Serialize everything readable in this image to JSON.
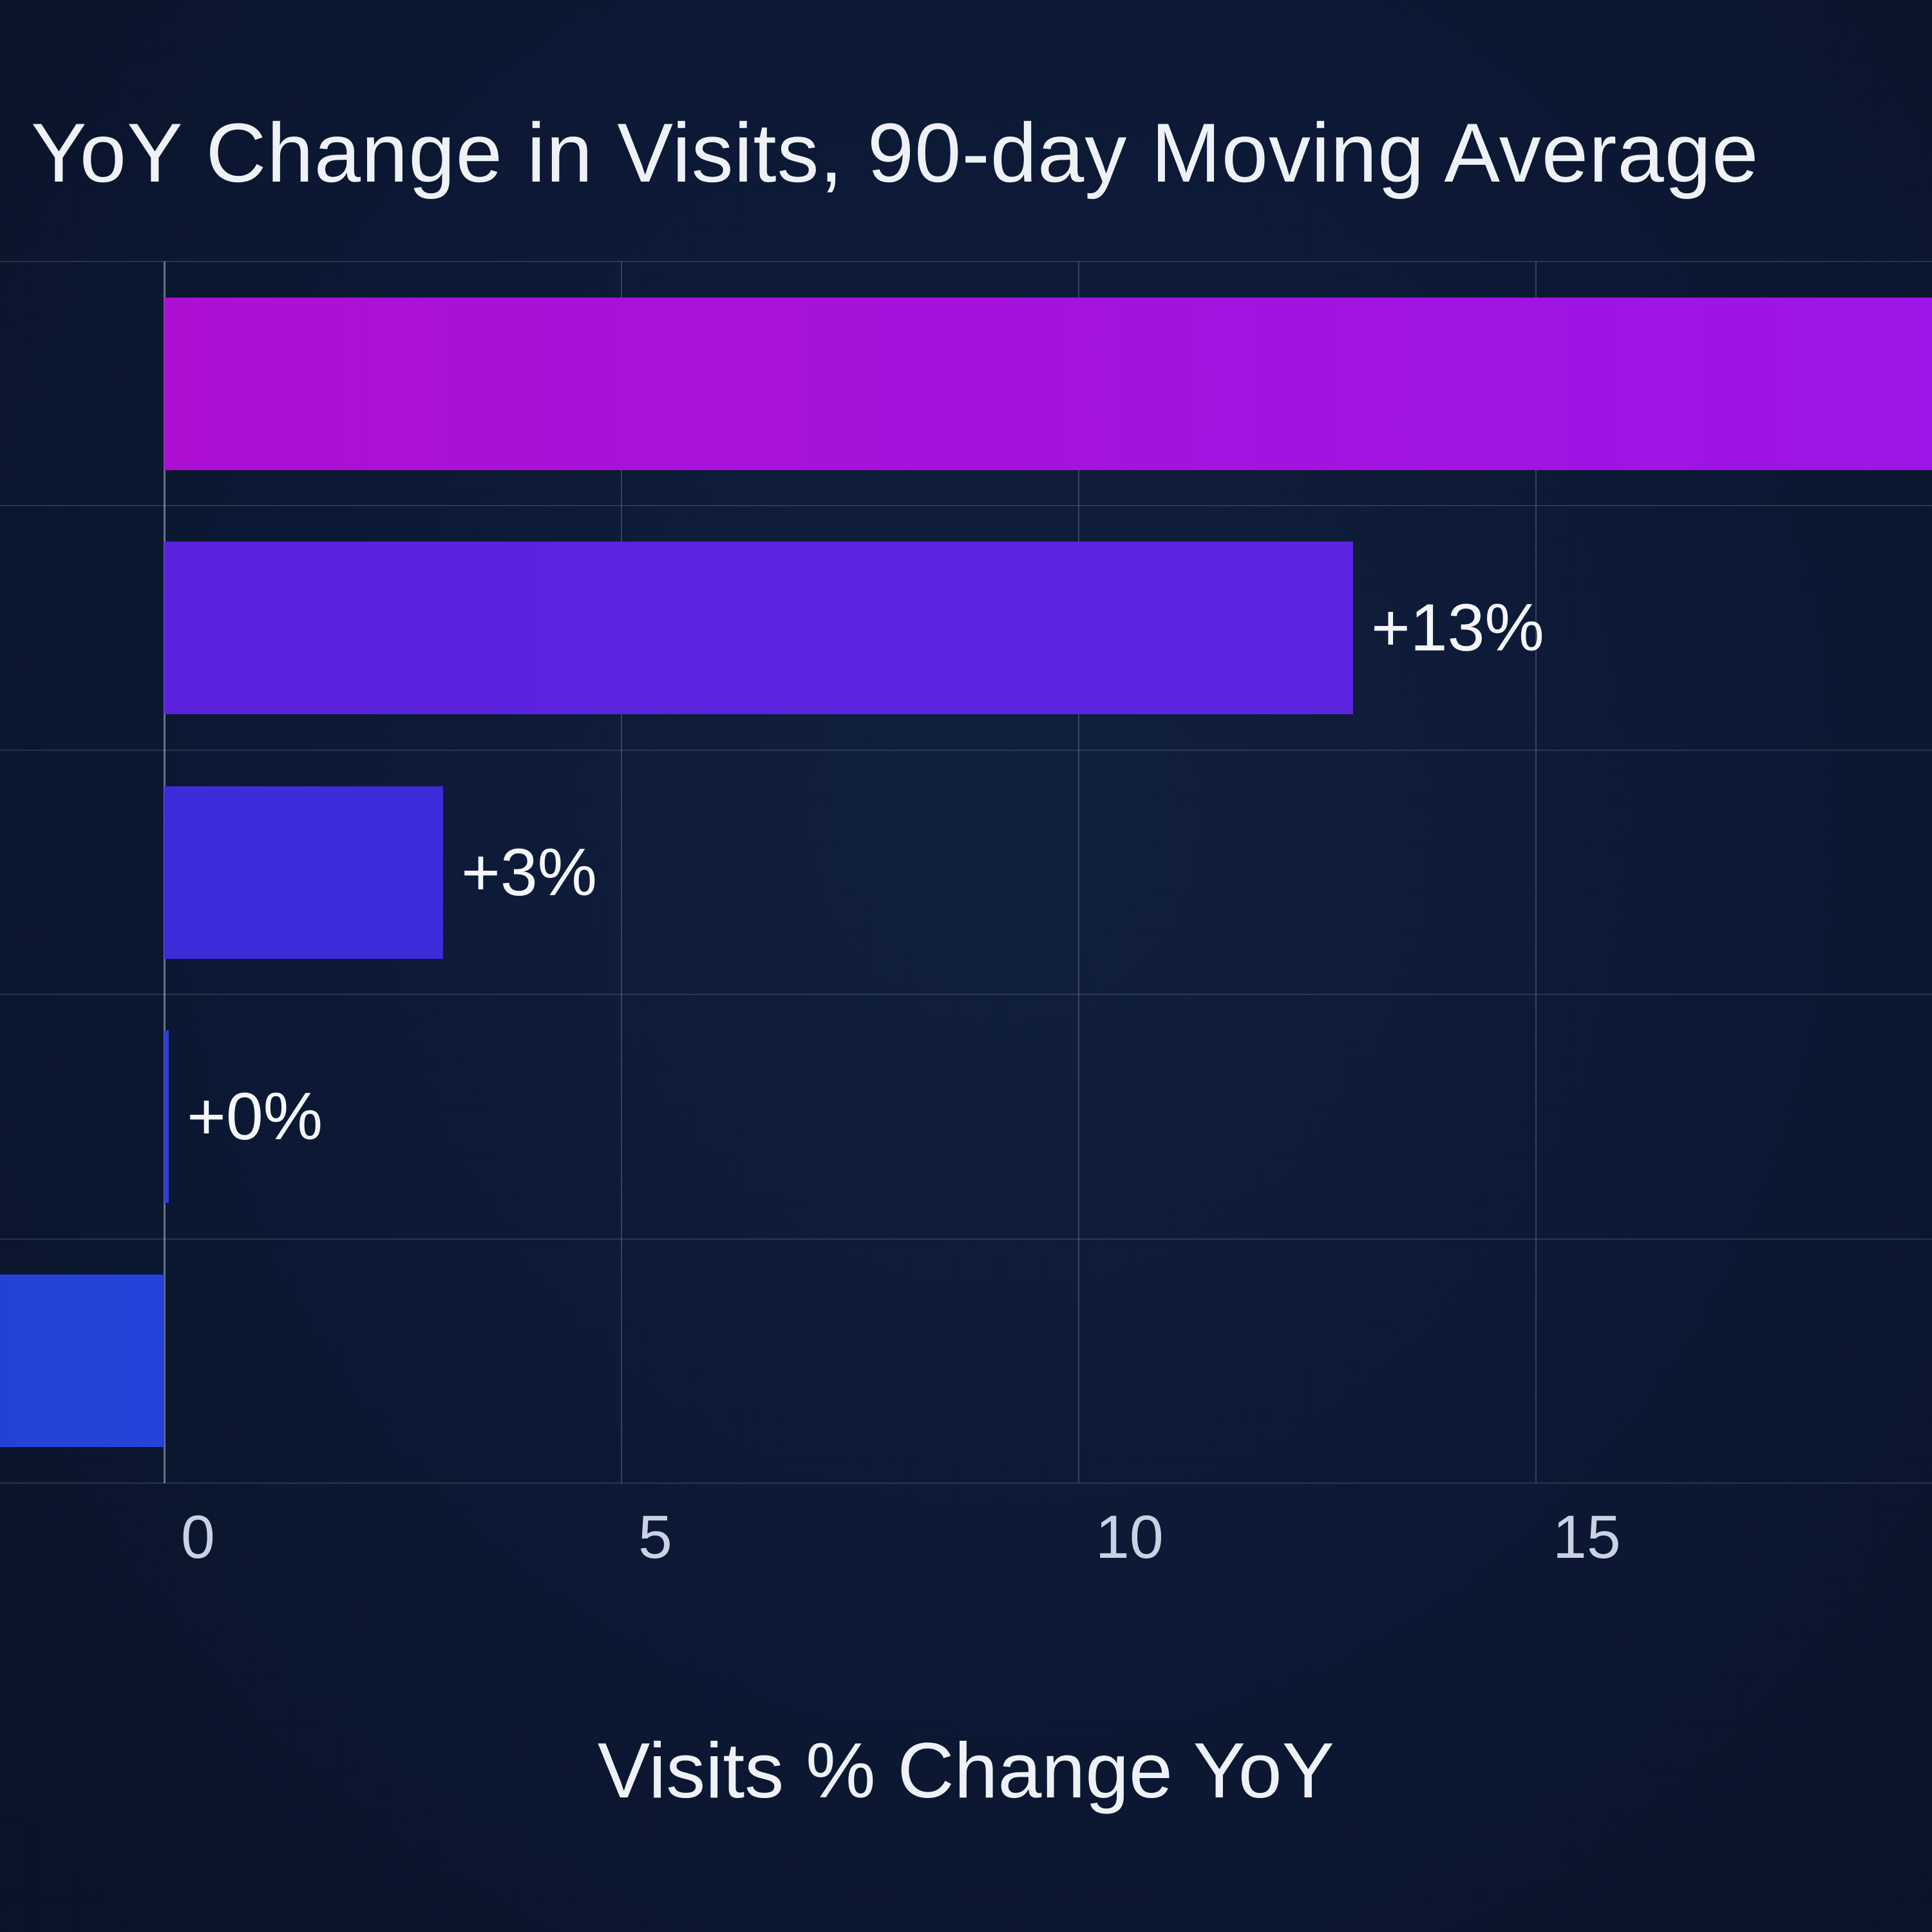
{
  "chart_data": {
    "type": "bar",
    "orientation": "horizontal",
    "title": "YoY Change in Visits, 90-day Moving Average",
    "xlabel": "Visits % Change YoY",
    "x_ticks": [
      0,
      5,
      10,
      15
    ],
    "x_visible_range": [
      -1.8,
      19.3
    ],
    "grid": true,
    "legend": "none",
    "categories_visible": false,
    "series": [
      {
        "label": "",
        "value": 19.6,
        "clipped": "right",
        "color_start": "#ad10d3",
        "color_end": "#9d15e7"
      },
      {
        "label": "+13%",
        "value": 13.0,
        "clipped": "none",
        "color_start": "#5b22de",
        "color_end": "#5c26e0"
      },
      {
        "label": "+3%",
        "value": 3.05,
        "clipped": "none",
        "color_start": "#3b2bd9",
        "color_end": "#3c2cd9"
      },
      {
        "label": "+0%",
        "value": 0.05,
        "clipped": "none",
        "color_start": "#2f3ecf",
        "color_end": "#2f3ecf"
      },
      {
        "label": "",
        "value": -1.8,
        "clipped": "left",
        "color_start": "#2342d5",
        "color_end": "#2443d8"
      }
    ],
    "colors": {
      "background": "#0c1834",
      "grid": "rgba(190,205,230,0.2)",
      "axis": "rgba(215,225,245,0.45)",
      "title_text": "#eef2f6",
      "tick_text": "#c9d2e4",
      "value_text": "#f4f6fa"
    }
  }
}
